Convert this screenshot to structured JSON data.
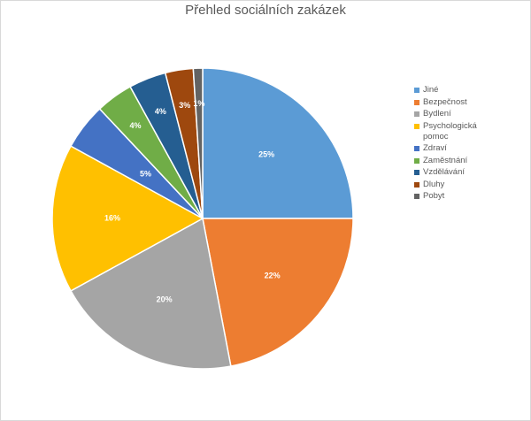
{
  "chart_data": {
    "type": "pie",
    "title": "Přehled sociálních zakázek",
    "legend_position": "right",
    "categories": [
      "Jiné",
      "Bezpečnost",
      "Bydlení",
      "Psychologická pomoc",
      "Zdraví",
      "Zaměstnání",
      "Vzdělávání",
      "Dluhy",
      "Pobyt"
    ],
    "values": [
      25,
      22,
      20,
      16,
      5,
      4,
      4,
      3,
      1
    ],
    "data_labels": [
      "25%",
      "22%",
      "20%",
      "16%",
      "5%",
      "4%",
      "4%",
      "3%",
      "1%"
    ],
    "colors": [
      "#5b9bd5",
      "#ed7d31",
      "#a5a5a5",
      "#ffc000",
      "#4472c4",
      "#70ad47",
      "#255e91",
      "#9e480e",
      "#636363"
    ]
  }
}
